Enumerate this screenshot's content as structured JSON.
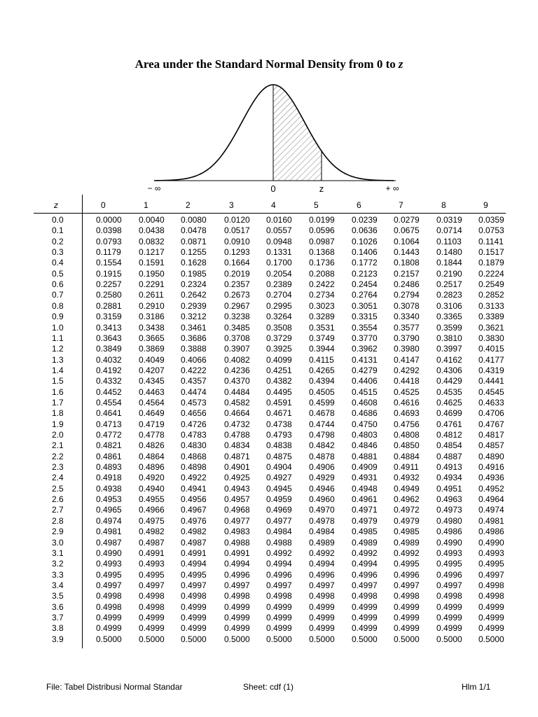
{
  "title": "Area under the Standard Normal Density from 0 to",
  "title_var": "z",
  "curve_labels": {
    "neg_inf": "− ∞",
    "zero": "0",
    "z": "z",
    "pos_inf": "+ ∞"
  },
  "table": {
    "z_header": "z",
    "columns": [
      "0",
      "1",
      "2",
      "3",
      "4",
      "5",
      "6",
      "7",
      "8",
      "9"
    ],
    "rows": [
      {
        "z": "0.0",
        "v": [
          "0.0000",
          "0.0040",
          "0.0080",
          "0.0120",
          "0.0160",
          "0.0199",
          "0.0239",
          "0.0279",
          "0.0319",
          "0.0359"
        ]
      },
      {
        "z": "0.1",
        "v": [
          "0.0398",
          "0.0438",
          "0.0478",
          "0.0517",
          "0.0557",
          "0.0596",
          "0.0636",
          "0.0675",
          "0.0714",
          "0.0753"
        ]
      },
      {
        "z": "0.2",
        "v": [
          "0.0793",
          "0.0832",
          "0.0871",
          "0.0910",
          "0.0948",
          "0.0987",
          "0.1026",
          "0.1064",
          "0.1103",
          "0.1141"
        ]
      },
      {
        "z": "0.3",
        "v": [
          "0.1179",
          "0.1217",
          "0.1255",
          "0.1293",
          "0.1331",
          "0.1368",
          "0.1406",
          "0.1443",
          "0.1480",
          "0.1517"
        ]
      },
      {
        "z": "0.4",
        "v": [
          "0.1554",
          "0.1591",
          "0.1628",
          "0.1664",
          "0.1700",
          "0.1736",
          "0.1772",
          "0.1808",
          "0.1844",
          "0.1879"
        ]
      },
      {
        "z": "0.5",
        "v": [
          "0.1915",
          "0.1950",
          "0.1985",
          "0.2019",
          "0.2054",
          "0.2088",
          "0.2123",
          "0.2157",
          "0.2190",
          "0.2224"
        ]
      },
      {
        "z": "0.6",
        "v": [
          "0.2257",
          "0.2291",
          "0.2324",
          "0.2357",
          "0.2389",
          "0.2422",
          "0.2454",
          "0.2486",
          "0.2517",
          "0.2549"
        ]
      },
      {
        "z": "0.7",
        "v": [
          "0.2580",
          "0.2611",
          "0.2642",
          "0.2673",
          "0.2704",
          "0.2734",
          "0.2764",
          "0.2794",
          "0.2823",
          "0.2852"
        ]
      },
      {
        "z": "0.8",
        "v": [
          "0.2881",
          "0.2910",
          "0.2939",
          "0.2967",
          "0.2995",
          "0.3023",
          "0.3051",
          "0.3078",
          "0.3106",
          "0.3133"
        ]
      },
      {
        "z": "0.9",
        "v": [
          "0.3159",
          "0.3186",
          "0.3212",
          "0.3238",
          "0.3264",
          "0.3289",
          "0.3315",
          "0.3340",
          "0.3365",
          "0.3389"
        ]
      },
      {
        "z": "1.0",
        "v": [
          "0.3413",
          "0.3438",
          "0.3461",
          "0.3485",
          "0.3508",
          "0.3531",
          "0.3554",
          "0.3577",
          "0.3599",
          "0.3621"
        ]
      },
      {
        "z": "1.1",
        "v": [
          "0.3643",
          "0.3665",
          "0.3686",
          "0.3708",
          "0.3729",
          "0.3749",
          "0.3770",
          "0.3790",
          "0.3810",
          "0.3830"
        ]
      },
      {
        "z": "1.2",
        "v": [
          "0.3849",
          "0.3869",
          "0.3888",
          "0.3907",
          "0.3925",
          "0.3944",
          "0.3962",
          "0.3980",
          "0.3997",
          "0.4015"
        ]
      },
      {
        "z": "1.3",
        "v": [
          "0.4032",
          "0.4049",
          "0.4066",
          "0.4082",
          "0.4099",
          "0.4115",
          "0.4131",
          "0.4147",
          "0.4162",
          "0.4177"
        ]
      },
      {
        "z": "1.4",
        "v": [
          "0.4192",
          "0.4207",
          "0.4222",
          "0.4236",
          "0.4251",
          "0.4265",
          "0.4279",
          "0.4292",
          "0.4306",
          "0.4319"
        ]
      },
      {
        "z": "1.5",
        "v": [
          "0.4332",
          "0.4345",
          "0.4357",
          "0.4370",
          "0.4382",
          "0.4394",
          "0.4406",
          "0.4418",
          "0.4429",
          "0.4441"
        ]
      },
      {
        "z": "1.6",
        "v": [
          "0.4452",
          "0.4463",
          "0.4474",
          "0.4484",
          "0.4495",
          "0.4505",
          "0.4515",
          "0.4525",
          "0.4535",
          "0.4545"
        ]
      },
      {
        "z": "1.7",
        "v": [
          "0.4554",
          "0.4564",
          "0.4573",
          "0.4582",
          "0.4591",
          "0.4599",
          "0.4608",
          "0.4616",
          "0.4625",
          "0.4633"
        ]
      },
      {
        "z": "1.8",
        "v": [
          "0.4641",
          "0.4649",
          "0.4656",
          "0.4664",
          "0.4671",
          "0.4678",
          "0.4686",
          "0.4693",
          "0.4699",
          "0.4706"
        ]
      },
      {
        "z": "1.9",
        "v": [
          "0.4713",
          "0.4719",
          "0.4726",
          "0.4732",
          "0.4738",
          "0.4744",
          "0.4750",
          "0.4756",
          "0.4761",
          "0.4767"
        ]
      },
      {
        "z": "2.0",
        "v": [
          "0.4772",
          "0.4778",
          "0.4783",
          "0.4788",
          "0.4793",
          "0.4798",
          "0.4803",
          "0.4808",
          "0.4812",
          "0.4817"
        ]
      },
      {
        "z": "2.1",
        "v": [
          "0.4821",
          "0.4826",
          "0.4830",
          "0.4834",
          "0.4838",
          "0.4842",
          "0.4846",
          "0.4850",
          "0.4854",
          "0.4857"
        ]
      },
      {
        "z": "2.2",
        "v": [
          "0.4861",
          "0.4864",
          "0.4868",
          "0.4871",
          "0.4875",
          "0.4878",
          "0.4881",
          "0.4884",
          "0.4887",
          "0.4890"
        ]
      },
      {
        "z": "2.3",
        "v": [
          "0.4893",
          "0.4896",
          "0.4898",
          "0.4901",
          "0.4904",
          "0.4906",
          "0.4909",
          "0.4911",
          "0.4913",
          "0.4916"
        ]
      },
      {
        "z": "2.4",
        "v": [
          "0.4918",
          "0.4920",
          "0.4922",
          "0.4925",
          "0.4927",
          "0.4929",
          "0.4931",
          "0.4932",
          "0.4934",
          "0.4936"
        ]
      },
      {
        "z": "2.5",
        "v": [
          "0.4938",
          "0.4940",
          "0.4941",
          "0.4943",
          "0.4945",
          "0.4946",
          "0.4948",
          "0.4949",
          "0.4951",
          "0.4952"
        ]
      },
      {
        "z": "2.6",
        "v": [
          "0.4953",
          "0.4955",
          "0.4956",
          "0.4957",
          "0.4959",
          "0.4960",
          "0.4961",
          "0.4962",
          "0.4963",
          "0.4964"
        ]
      },
      {
        "z": "2.7",
        "v": [
          "0.4965",
          "0.4966",
          "0.4967",
          "0.4968",
          "0.4969",
          "0.4970",
          "0.4971",
          "0.4972",
          "0.4973",
          "0.4974"
        ]
      },
      {
        "z": "2.8",
        "v": [
          "0.4974",
          "0.4975",
          "0.4976",
          "0.4977",
          "0.4977",
          "0.4978",
          "0.4979",
          "0.4979",
          "0.4980",
          "0.4981"
        ]
      },
      {
        "z": "2.9",
        "v": [
          "0.4981",
          "0.4982",
          "0.4982",
          "0.4983",
          "0.4984",
          "0.4984",
          "0.4985",
          "0.4985",
          "0.4986",
          "0.4986"
        ]
      },
      {
        "z": "3.0",
        "v": [
          "0.4987",
          "0.4987",
          "0.4987",
          "0.4988",
          "0.4988",
          "0.4989",
          "0.4989",
          "0.4989",
          "0.4990",
          "0.4990"
        ]
      },
      {
        "z": "3.1",
        "v": [
          "0.4990",
          "0.4991",
          "0.4991",
          "0.4991",
          "0.4992",
          "0.4992",
          "0.4992",
          "0.4992",
          "0.4993",
          "0.4993"
        ]
      },
      {
        "z": "3.2",
        "v": [
          "0.4993",
          "0.4993",
          "0.4994",
          "0.4994",
          "0.4994",
          "0.4994",
          "0.4994",
          "0.4995",
          "0.4995",
          "0.4995"
        ]
      },
      {
        "z": "3.3",
        "v": [
          "0.4995",
          "0.4995",
          "0.4995",
          "0.4996",
          "0.4996",
          "0.4996",
          "0.4996",
          "0.4996",
          "0.4996",
          "0.4997"
        ]
      },
      {
        "z": "3.4",
        "v": [
          "0.4997",
          "0.4997",
          "0.4997",
          "0.4997",
          "0.4997",
          "0.4997",
          "0.4997",
          "0.4997",
          "0.4997",
          "0.4998"
        ]
      },
      {
        "z": "3.5",
        "v": [
          "0.4998",
          "0.4998",
          "0.4998",
          "0.4998",
          "0.4998",
          "0.4998",
          "0.4998",
          "0.4998",
          "0.4998",
          "0.4998"
        ]
      },
      {
        "z": "3.6",
        "v": [
          "0.4998",
          "0.4998",
          "0.4999",
          "0.4999",
          "0.4999",
          "0.4999",
          "0.4999",
          "0.4999",
          "0.4999",
          "0.4999"
        ]
      },
      {
        "z": "3.7",
        "v": [
          "0.4999",
          "0.4999",
          "0.4999",
          "0.4999",
          "0.4999",
          "0.4999",
          "0.4999",
          "0.4999",
          "0.4999",
          "0.4999"
        ]
      },
      {
        "z": "3.8",
        "v": [
          "0.4999",
          "0.4999",
          "0.4999",
          "0.4999",
          "0.4999",
          "0.4999",
          "0.4999",
          "0.4999",
          "0.4999",
          "0.4999"
        ]
      },
      {
        "z": "3.9",
        "v": [
          "0.5000",
          "0.5000",
          "0.5000",
          "0.5000",
          "0.5000",
          "0.5000",
          "0.5000",
          "0.5000",
          "0.5000",
          "0.5000"
        ]
      }
    ]
  },
  "footer": {
    "file": "File: Tabel Distribusi Normal Standar",
    "sheet": "Sheet: cdf (1)",
    "page": "Hlm 1/1"
  }
}
